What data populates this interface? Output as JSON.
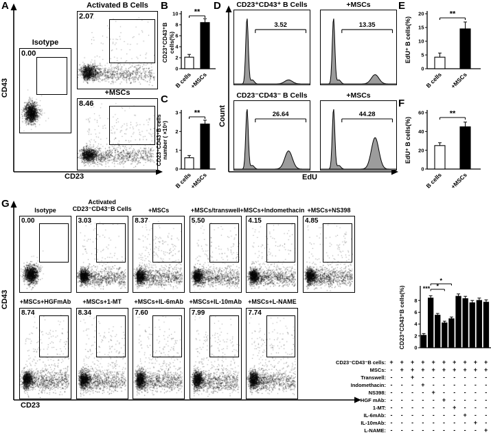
{
  "figure": {
    "background": "#ffffff"
  },
  "colors": {
    "bar_white": "#ffffff",
    "bar_black": "#000000",
    "hist_fill": "#9c9c9c",
    "axis": "#000000"
  },
  "chart_data": [
    {
      "panel": "A",
      "type": "scatter",
      "xlabel": "CD23",
      "ylabel": "CD43",
      "plots": [
        {
          "title": "Isotype",
          "gate_percent": "0.00",
          "isotype": true
        },
        {
          "title": "Activated B Cells",
          "gate_percent": "2.07",
          "isotype": false
        },
        {
          "title": "+MSCs",
          "gate_percent": "8.46",
          "isotype": false
        }
      ]
    },
    {
      "panel": "B",
      "type": "bar",
      "categories": [
        "B cells",
        "+MSCs"
      ],
      "values": [
        2.1,
        8.4
      ],
      "errors": [
        0.5,
        0.7
      ],
      "bar_colors": [
        "#ffffff",
        "#000000"
      ],
      "ylabel": "CD23⁺CD43⁺B cells(%)",
      "ylim": [
        0,
        10
      ],
      "yticks": [
        0,
        2,
        4,
        6,
        8,
        10
      ],
      "significance": "**"
    },
    {
      "panel": "C",
      "type": "bar",
      "categories": [
        "B cells",
        "+MSCs"
      ],
      "values": [
        0.6,
        2.4
      ],
      "errors": [
        0.12,
        0.2
      ],
      "bar_colors": [
        "#ffffff",
        "#000000"
      ],
      "ylabel": "CD23⁺CD43⁺B cells\nnumber ( ×10⁵)",
      "ylim": [
        0,
        3
      ],
      "yticks": [
        0,
        1,
        2,
        3
      ],
      "significance": "**"
    },
    {
      "panel": "D",
      "type": "histogram",
      "xlabel": "EdU",
      "ylabel": "Count",
      "plots": [
        {
          "title": "CD23⁺CD43⁺ B Cells",
          "gate_percent": "3.52",
          "right_peak": 0.06
        },
        {
          "title": "+MSCs",
          "gate_percent": "13.35",
          "right_peak": 0.14
        },
        {
          "title": "CD23⁻CD43⁻ B Cells",
          "gate_percent": "26.64",
          "right_peak": 0.3
        },
        {
          "title": "+MSCs",
          "gate_percent": "44.28",
          "right_peak": 0.52
        }
      ]
    },
    {
      "panel": "E",
      "type": "bar",
      "categories": [
        "B cells",
        "+MSCs"
      ],
      "values": [
        4.2,
        14.5
      ],
      "errors": [
        1.5,
        2.5
      ],
      "bar_colors": [
        "#ffffff",
        "#000000"
      ],
      "ylabel": "EdU⁺ B cells(%)",
      "ylim": [
        0,
        20
      ],
      "yticks": [
        0,
        5,
        10,
        15,
        20
      ],
      "significance": "**"
    },
    {
      "panel": "F",
      "type": "bar",
      "categories": [
        "B cells",
        "+MSCs"
      ],
      "values": [
        25,
        45
      ],
      "errors": [
        3,
        5
      ],
      "bar_colors": [
        "#ffffff",
        "#000000"
      ],
      "ylabel": "EdU⁺ B cells(%)",
      "ylim": [
        0,
        60
      ],
      "yticks": [
        0,
        20,
        40,
        60
      ],
      "significance": "**"
    },
    {
      "panel": "G",
      "type": "scatter+bar",
      "xlabel": "CD23",
      "ylabel": "CD43",
      "plots_row1": [
        {
          "title": "Isotype",
          "gate_percent": "0.00",
          "isotype": true
        },
        {
          "title": "Activated\nCD23⁻CD43⁻B Cells",
          "gate_percent": "3.03",
          "isotype": false
        },
        {
          "title": "+MSCs",
          "gate_percent": "8.37",
          "isotype": false
        },
        {
          "title": "+MSCs/transwell",
          "gate_percent": "5.50",
          "isotype": false
        },
        {
          "title": "+MSCs+Indomethacin",
          "gate_percent": "4.15",
          "isotype": false
        },
        {
          "title": "+MSCs+NS398",
          "gate_percent": "4.85",
          "isotype": false
        }
      ],
      "plots_row2": [
        {
          "title": "+MSCs+HGFmAb",
          "gate_percent": "8.74",
          "isotype": false
        },
        {
          "title": "+MSCs+1-MT",
          "gate_percent": "8.34",
          "isotype": false
        },
        {
          "title": "+MSCs+IL-6mAb",
          "gate_percent": "7.60",
          "isotype": false
        },
        {
          "title": "+MSCs+IL-10mAb",
          "gate_percent": "7.99",
          "isotype": false
        },
        {
          "title": "+MSCs+L-NAME",
          "gate_percent": "7.74",
          "isotype": false
        }
      ],
      "bar": {
        "values": [
          2.1,
          8.4,
          5.5,
          4.2,
          4.9,
          8.7,
          8.3,
          7.6,
          8.0,
          7.7
        ],
        "errors": [
          0.3,
          0.4,
          0.3,
          0.3,
          0.3,
          0.4,
          0.4,
          0.4,
          0.4,
          0.4
        ],
        "bar_color": "#000000",
        "ylabel": "CD23⁺CD43⁺B cells(%)",
        "ylim": [
          0,
          10
        ],
        "yticks": [
          0,
          2,
          4,
          6,
          8
        ],
        "sig_marks": [
          {
            "label": "***",
            "at_bar": 0
          },
          {
            "label": "*",
            "from_bar": 1,
            "to_bar": 3
          },
          {
            "label": "*",
            "from_bar": 1,
            "to_bar": 4
          }
        ]
      },
      "conditions": [
        {
          "label": "CD23⁻CD43⁻B cells:",
          "cells": [
            "+",
            "+",
            "+",
            "+",
            "+",
            "+",
            "+",
            "+",
            "+",
            "+"
          ]
        },
        {
          "label": "MSCs:",
          "cells": [
            "-",
            "+",
            "+",
            "+",
            "+",
            "+",
            "+",
            "+",
            "+",
            "+"
          ]
        },
        {
          "label": "Transwell:",
          "cells": [
            "-",
            "-",
            "+",
            "-",
            "-",
            "-",
            "-",
            "-",
            "-",
            "-"
          ]
        },
        {
          "label": "Indomethacin:",
          "cells": [
            "-",
            "-",
            "-",
            "+",
            "-",
            "-",
            "-",
            "-",
            "-",
            "-"
          ]
        },
        {
          "label": "NS398:",
          "cells": [
            "-",
            "-",
            "-",
            "-",
            "+",
            "-",
            "-",
            "-",
            "-",
            "-"
          ]
        },
        {
          "label": "HGF mAb:",
          "cells": [
            "-",
            "-",
            "-",
            "-",
            "-",
            "+",
            "-",
            "-",
            "-",
            "-"
          ]
        },
        {
          "label": "1-MT:",
          "cells": [
            "-",
            "-",
            "-",
            "-",
            "-",
            "-",
            "+",
            "-",
            "-",
            "-"
          ]
        },
        {
          "label": "IL-6mAb:",
          "cells": [
            "-",
            "-",
            "-",
            "-",
            "-",
            "-",
            "-",
            "+",
            "-",
            "-"
          ]
        },
        {
          "label": "IL-10mAb:",
          "cells": [
            "-",
            "-",
            "-",
            "-",
            "-",
            "-",
            "-",
            "-",
            "+",
            "-"
          ]
        },
        {
          "label": "L-NAME:",
          "cells": [
            "-",
            "-",
            "-",
            "-",
            "-",
            "-",
            "-",
            "-",
            "-",
            "+"
          ]
        }
      ]
    }
  ]
}
